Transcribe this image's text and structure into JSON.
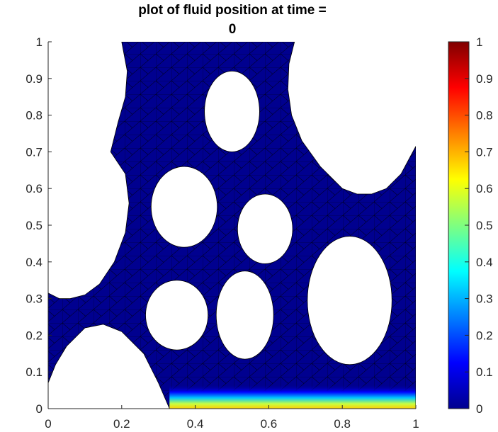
{
  "chart_data": {
    "type": "heatmap",
    "title_line1": "plot of fluid position at time =",
    "title_line2": "0",
    "xlabel": "",
    "ylabel": "",
    "xlim": [
      0,
      1
    ],
    "ylim": [
      0,
      1
    ],
    "xticks": [
      "0",
      "0.2",
      "0.4",
      "0.6",
      "0.8",
      "1"
    ],
    "yticks": [
      "0",
      "0.1",
      "0.2",
      "0.3",
      "0.4",
      "0.5",
      "0.6",
      "0.7",
      "0.8",
      "0.9",
      "1"
    ],
    "colorbar": {
      "colormap": "jet",
      "range": [
        0,
        1
      ],
      "ticks": [
        "0",
        "0.1",
        "0.2",
        "0.3",
        "0.4",
        "0.5",
        "0.6",
        "0.7",
        "0.8",
        "0.9",
        "1"
      ]
    },
    "field_value_bulk": 0,
    "field_value_bottom_edge": 0.6,
    "holes": [
      {
        "cx": 0.5,
        "cy": 0.81,
        "rx": 0.075,
        "ry": 0.11
      },
      {
        "cx": 0.37,
        "cy": 0.55,
        "rx": 0.09,
        "ry": 0.11
      },
      {
        "cx": 0.59,
        "cy": 0.49,
        "rx": 0.075,
        "ry": 0.095
      },
      {
        "cx": 0.35,
        "cy": 0.255,
        "rx": 0.085,
        "ry": 0.095
      },
      {
        "cx": 0.535,
        "cy": 0.255,
        "rx": 0.078,
        "ry": 0.12
      },
      {
        "cx": 0.82,
        "cy": 0.295,
        "rx": 0.115,
        "ry": 0.175
      }
    ]
  }
}
